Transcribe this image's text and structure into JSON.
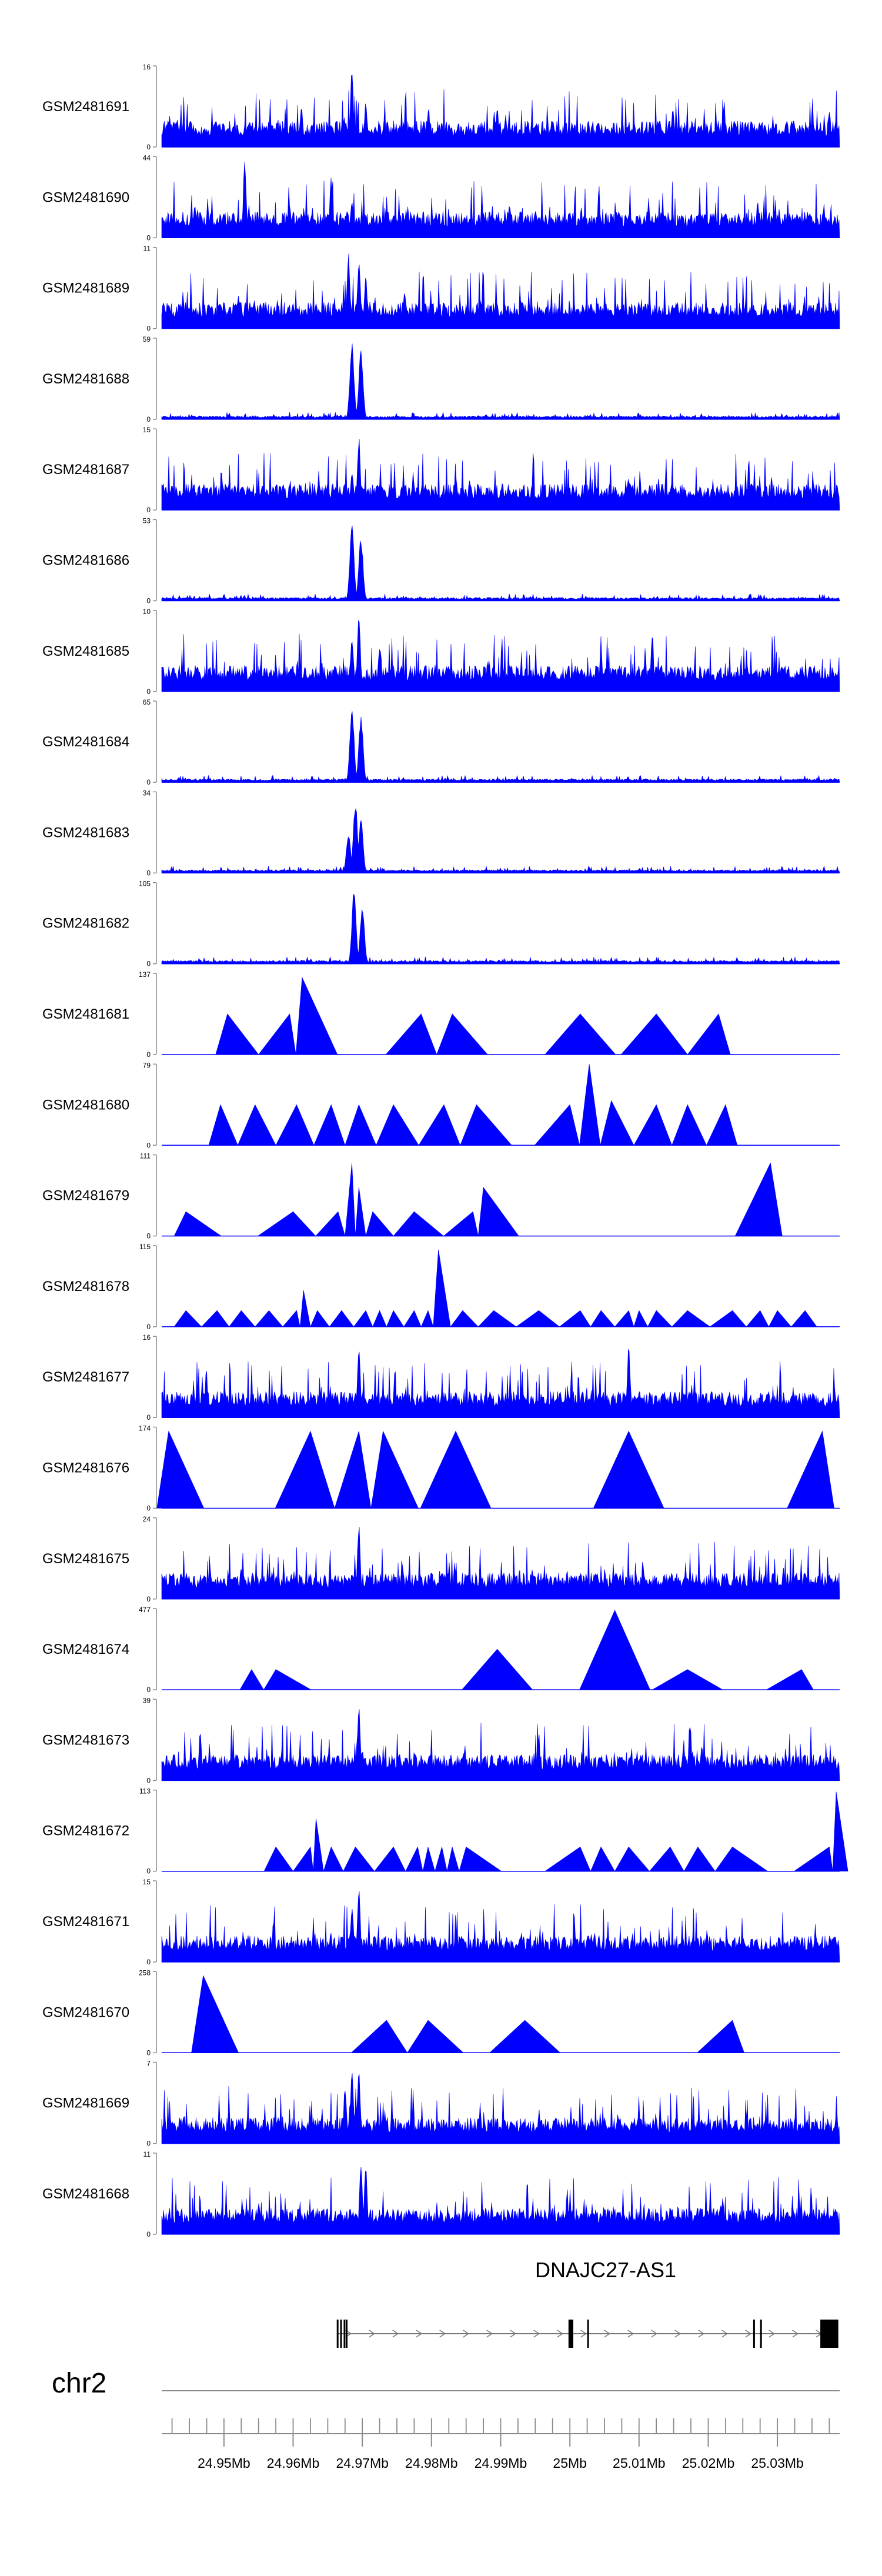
{
  "chart_data": {
    "type": "genome-browser-area",
    "region": {
      "chromosome": "chr2",
      "start_mb": 24.941,
      "end_mb": 25.039
    },
    "tracks": [
      {
        "id": "GSM2481691",
        "ymax": "16",
        "ymin": "0",
        "style": "dense",
        "peaks": [
          [
            24.9685,
            0.98
          ],
          [
            24.9705,
            0.55
          ],
          [
            24.9612,
            0.5
          ],
          [
            24.9895,
            0.5
          ],
          [
            25.0375,
            0.45
          ]
        ]
      },
      {
        "id": "GSM2481690",
        "ymax": "44",
        "ymin": "0",
        "style": "sparse",
        "peaks": [
          [
            24.953,
            0.95
          ],
          [
            24.9655,
            0.75
          ],
          [
            24.9685,
            0.5
          ]
        ]
      },
      {
        "id": "GSM2481689",
        "ymax": "11",
        "ymin": "0",
        "style": "dense",
        "peaks": [
          [
            24.968,
            0.95
          ],
          [
            24.9695,
            0.9
          ],
          [
            24.9705,
            0.65
          ]
        ]
      },
      {
        "id": "GSM2481688",
        "ymax": "59",
        "ymin": "0",
        "style": "peak",
        "peaks": [
          [
            24.9685,
            0.95
          ],
          [
            24.9698,
            0.85
          ]
        ]
      },
      {
        "id": "GSM2481687",
        "ymax": "15",
        "ymin": "0",
        "style": "dense",
        "peaks": [
          [
            24.9695,
            0.92
          ],
          [
            24.9685,
            0.5
          ],
          [
            25.0085,
            0.4
          ]
        ]
      },
      {
        "id": "GSM2481686",
        "ymax": "53",
        "ymin": "0",
        "style": "peak",
        "peaks": [
          [
            24.9685,
            0.95
          ],
          [
            24.9698,
            0.8
          ]
        ]
      },
      {
        "id": "GSM2481685",
        "ymax": "10",
        "ymin": "0",
        "style": "dense",
        "peaks": [
          [
            24.9695,
            0.95
          ],
          [
            24.9685,
            0.7
          ],
          [
            24.9725,
            0.6
          ]
        ]
      },
      {
        "id": "GSM2481684",
        "ymax": "65",
        "ymin": "0",
        "style": "peak",
        "peaks": [
          [
            24.9685,
            0.95
          ],
          [
            24.9698,
            0.85
          ]
        ]
      },
      {
        "id": "GSM2481683",
        "ymax": "34",
        "ymin": "0",
        "style": "peak",
        "peaks": [
          [
            24.969,
            0.9
          ],
          [
            24.9698,
            0.7
          ],
          [
            24.968,
            0.5
          ]
        ]
      },
      {
        "id": "GSM2481682",
        "ymax": "105",
        "ymin": "0",
        "style": "peak",
        "peaks": [
          [
            24.9688,
            0.93
          ],
          [
            24.97,
            0.75
          ]
        ]
      },
      {
        "id": "GSM2481681",
        "ymax": "137",
        "ymin": "0",
        "style": "triangles",
        "peaks": [
          [
            24.9505,
            0.5
          ],
          [
            24.9595,
            0.5
          ],
          [
            24.9613,
            0.95
          ],
          [
            24.9785,
            0.5
          ],
          [
            24.983,
            0.5
          ],
          [
            25.0015,
            0.5
          ],
          [
            25.0125,
            0.5
          ],
          [
            25.0215,
            0.5
          ]
        ]
      },
      {
        "id": "GSM2481680",
        "ymax": "79",
        "ymin": "0",
        "style": "triangles",
        "peaks": [
          [
            24.9495,
            0.5
          ],
          [
            24.9545,
            0.5
          ],
          [
            24.9605,
            0.5
          ],
          [
            24.9655,
            0.5
          ],
          [
            24.9695,
            0.5
          ],
          [
            24.9745,
            0.5
          ],
          [
            24.9818,
            0.5
          ],
          [
            24.9865,
            0.5
          ],
          [
            25.0,
            0.5
          ],
          [
            25.0028,
            1.0
          ],
          [
            25.006,
            0.55
          ],
          [
            25.0125,
            0.5
          ],
          [
            25.017,
            0.5
          ],
          [
            25.0225,
            0.5
          ]
        ]
      },
      {
        "id": "GSM2481679",
        "ymax": "111",
        "ymin": "0",
        "style": "triangles",
        "peaks": [
          [
            24.9445,
            0.3
          ],
          [
            24.96,
            0.3
          ],
          [
            24.9665,
            0.3
          ],
          [
            24.9685,
            0.9
          ],
          [
            24.9695,
            0.6
          ],
          [
            24.9715,
            0.3
          ],
          [
            24.9775,
            0.3
          ],
          [
            24.986,
            0.3
          ],
          [
            24.9875,
            0.6
          ],
          [
            25.029,
            0.9
          ]
        ]
      },
      {
        "id": "GSM2481678",
        "ymax": "115",
        "ymin": "0",
        "style": "triangles",
        "peaks": [
          [
            24.9445,
            0.2
          ],
          [
            24.949,
            0.2
          ],
          [
            24.9525,
            0.2
          ],
          [
            24.9565,
            0.2
          ],
          [
            24.9605,
            0.2
          ],
          [
            24.9615,
            0.45
          ],
          [
            24.9635,
            0.2
          ],
          [
            24.967,
            0.2
          ],
          [
            24.9705,
            0.2
          ],
          [
            24.9725,
            0.2
          ],
          [
            24.9745,
            0.2
          ],
          [
            24.9775,
            0.2
          ],
          [
            24.9795,
            0.2
          ],
          [
            24.981,
            0.95
          ],
          [
            24.9845,
            0.2
          ],
          [
            24.989,
            0.2
          ],
          [
            24.9955,
            0.2
          ],
          [
            25.0015,
            0.2
          ],
          [
            25.0045,
            0.2
          ],
          [
            25.0085,
            0.2
          ],
          [
            25.01,
            0.2
          ],
          [
            25.0125,
            0.2
          ],
          [
            25.017,
            0.2
          ],
          [
            25.0235,
            0.2
          ],
          [
            25.0275,
            0.2
          ],
          [
            25.03,
            0.2
          ],
          [
            25.034,
            0.2
          ]
        ]
      },
      {
        "id": "GSM2481677",
        "ymax": "16",
        "ymin": "0",
        "style": "dense",
        "peaks": [
          [
            24.9695,
            0.92
          ],
          [
            25.0085,
            0.88
          ]
        ]
      },
      {
        "id": "GSM2481676",
        "ymax": "174",
        "ymin": "0",
        "style": "triangles",
        "peaks": [
          [
            24.942,
            0.95
          ],
          [
            24.9625,
            0.95
          ],
          [
            24.9695,
            0.95
          ],
          [
            24.973,
            0.95
          ],
          [
            24.9835,
            0.95
          ],
          [
            25.0085,
            0.95
          ],
          [
            25.0365,
            0.95
          ]
        ]
      },
      {
        "id": "GSM2481675",
        "ymax": "24",
        "ymin": "0",
        "style": "dense",
        "peaks": [
          [
            24.9695,
            0.95
          ],
          [
            24.9685,
            0.35
          ]
        ]
      },
      {
        "id": "GSM2481674",
        "ymax": "477",
        "ymin": "0",
        "style": "triangles",
        "peaks": [
          [
            24.954,
            0.25
          ],
          [
            24.9575,
            0.25
          ],
          [
            24.9895,
            0.5
          ],
          [
            25.0065,
            0.98
          ],
          [
            25.017,
            0.25
          ],
          [
            25.0335,
            0.25
          ]
        ]
      },
      {
        "id": "GSM2481673",
        "ymax": "39",
        "ymin": "0",
        "style": "dense",
        "peaks": [
          [
            24.9695,
            0.98
          ],
          [
            24.97,
            0.4
          ]
        ]
      },
      {
        "id": "GSM2481672",
        "ymax": "113",
        "ymin": "0",
        "style": "triangles",
        "peaks": [
          [
            24.9575,
            0.3
          ],
          [
            24.9625,
            0.3
          ],
          [
            24.9633,
            0.65
          ],
          [
            24.9655,
            0.3
          ],
          [
            24.969,
            0.3
          ],
          [
            24.9745,
            0.3
          ],
          [
            24.978,
            0.3
          ],
          [
            24.9795,
            0.3
          ],
          [
            24.9815,
            0.3
          ],
          [
            24.983,
            0.3
          ],
          [
            24.985,
            0.3
          ],
          [
            25.0015,
            0.3
          ],
          [
            25.0045,
            0.3
          ],
          [
            25.0085,
            0.3
          ],
          [
            25.0145,
            0.3
          ],
          [
            25.0185,
            0.3
          ],
          [
            25.0235,
            0.3
          ],
          [
            25.0375,
            0.3
          ],
          [
            25.0385,
            0.98
          ]
        ]
      },
      {
        "id": "GSM2481671",
        "ymax": "15",
        "ymin": "0",
        "style": "dense",
        "peaks": [
          [
            24.9695,
            0.95
          ],
          [
            24.9685,
            0.7
          ]
        ]
      },
      {
        "id": "GSM2481670",
        "ymax": "258",
        "ymin": "0",
        "style": "triangles",
        "peaks": [
          [
            24.947,
            0.95
          ],
          [
            24.9735,
            0.4
          ],
          [
            24.9795,
            0.4
          ],
          [
            24.9935,
            0.4
          ],
          [
            25.0235,
            0.4
          ]
        ]
      },
      {
        "id": "GSM2481669",
        "ymax": "7",
        "ymin": "0",
        "style": "dense",
        "peaks": [
          [
            24.9685,
            0.98
          ],
          [
            24.9695,
            0.9
          ],
          [
            24.9675,
            0.7
          ]
        ]
      },
      {
        "id": "GSM2481668",
        "ymax": "11",
        "ymin": "0",
        "style": "dense",
        "peaks": [
          [
            24.9698,
            0.95
          ],
          [
            24.9705,
            0.85
          ]
        ]
      }
    ],
    "gene": {
      "name": "DNAJC27-AS1",
      "strand": "+",
      "exons_mb": [
        [
          24.9663,
          24.9665
        ],
        [
          24.9668,
          24.967
        ],
        [
          24.9673,
          24.9675
        ],
        [
          24.9676,
          24.9678
        ],
        [
          24.9998,
          25.0005
        ],
        [
          25.0025,
          25.0027
        ],
        [
          25.0265,
          25.0267
        ],
        [
          25.0275,
          25.0277
        ],
        [
          25.0362,
          25.0388
        ]
      ]
    },
    "chromosome_label": "chr2",
    "tick_labels": [
      "24.95Mb",
      "24.96Mb",
      "24.97Mb",
      "24.98Mb",
      "24.99Mb",
      "25Mb",
      "25.01Mb",
      "25.02Mb",
      "25.03Mb"
    ],
    "tick_values_mb": [
      24.95,
      24.96,
      24.97,
      24.98,
      24.99,
      25.0,
      25.01,
      25.02,
      25.03
    ],
    "minor_tick_step_mb": 0.0025,
    "colors": {
      "signal": "#0000ff",
      "axis": "#8a8a8a",
      "gene": "#000000"
    }
  }
}
